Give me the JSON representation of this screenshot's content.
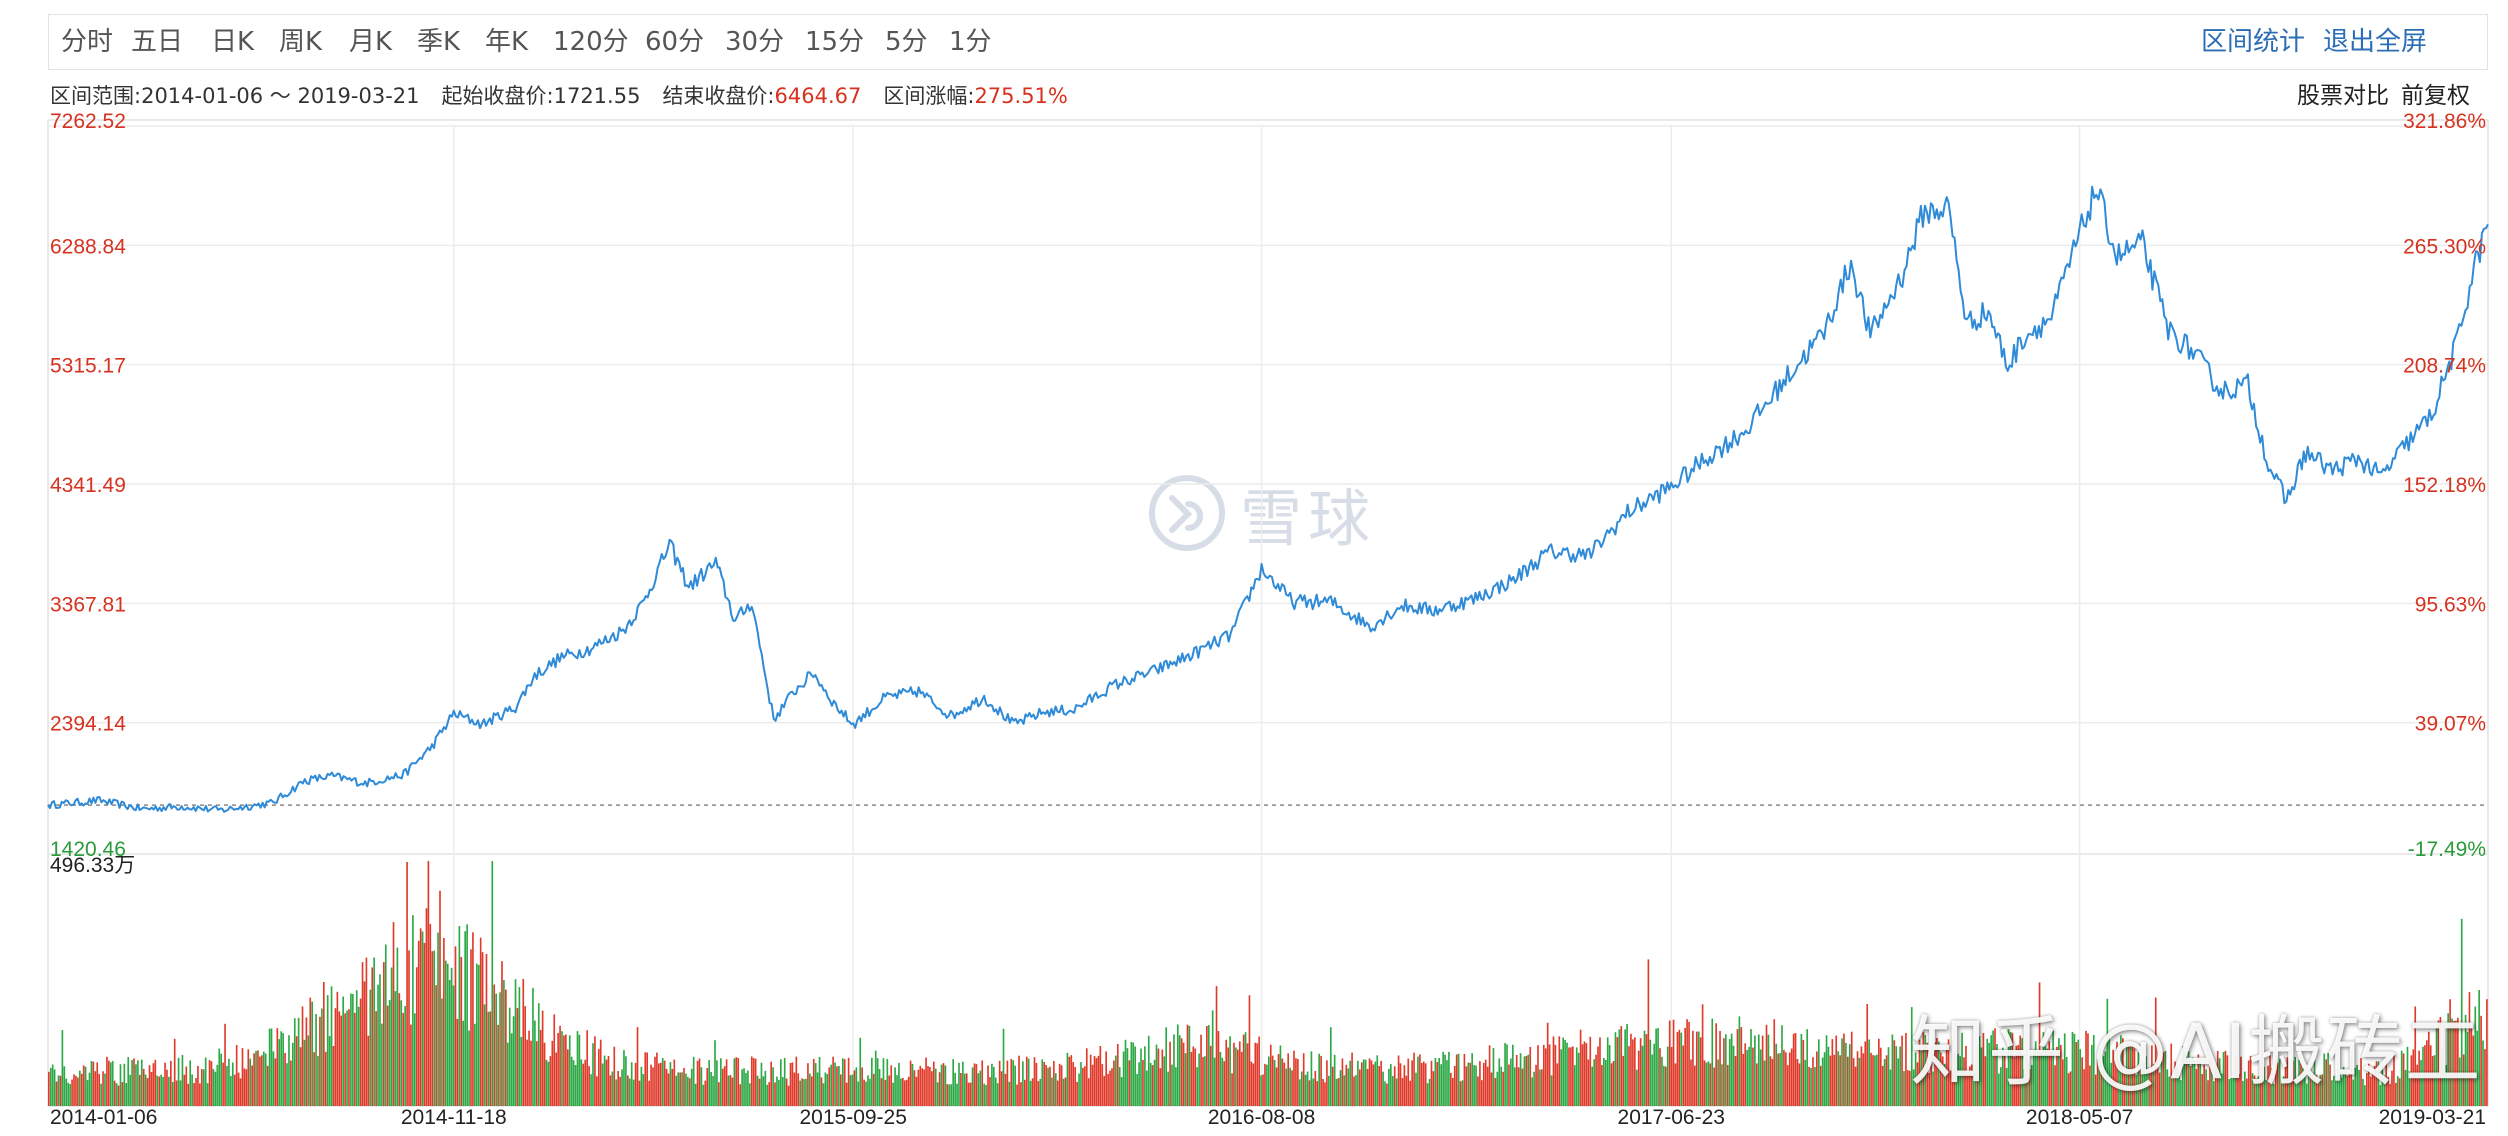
{
  "tabs": [
    "分时",
    "五日",
    "日K",
    "周K",
    "月K",
    "季K",
    "年K",
    "120分",
    "60分",
    "30分",
    "15分",
    "5分",
    "1分"
  ],
  "right_tabs": [
    "区间统计",
    "退出全屏"
  ],
  "summary": {
    "range_label": "区间范围:",
    "range_value": "2014-01-06 ～ 2019-03-21",
    "start_label": "起始收盘价:",
    "start_value": "1721.55",
    "end_label": "结束收盘价:",
    "end_value": "6464.67",
    "change_label": "区间涨幅:",
    "change_value": "275.51%"
  },
  "top_right": {
    "compare": "股票对比",
    "adjust": "前复权"
  },
  "watermarks": {
    "logo_text": "雪球",
    "zhihu": "知乎 @AI搬砖工"
  },
  "colors": {
    "line": "#2f8bd8",
    "up": "#e03a2a",
    "down": "#2ca845",
    "red_text": "#d6321f",
    "green_text": "#2a9a3a"
  },
  "chart_data": {
    "type": "line",
    "x_range": [
      "2014-01-06",
      "2019-03-21"
    ],
    "x_tick_labels": [
      "2014-01-06",
      "2014-11-18",
      "2015-09-25",
      "2016-08-08",
      "2017-06-23",
      "2018-05-07",
      "2019-03-21"
    ],
    "y_range": [
      1420.46,
      7262.52
    ],
    "y_tick_labels": [
      "7262.52",
      "6288.84",
      "5315.17",
      "4341.49",
      "3367.81",
      "2394.14",
      "1420.46"
    ],
    "pct_tick_labels": [
      "321.86%",
      "265.30%",
      "208.74%",
      "152.18%",
      "95.63%",
      "39.07%",
      "-17.49%"
    ],
    "baseline_value": 1721.55,
    "volume_max_label": "496.33万",
    "grid": true,
    "series": [
      {
        "x": [
          "2014-01-06",
          "2014-02-15",
          "2014-03-20",
          "2014-04-20",
          "2014-05-20",
          "2014-06-30",
          "2014-07-25",
          "2014-08-15",
          "2014-09-10",
          "2014-10-10",
          "2014-11-01",
          "2014-11-18",
          "2014-12-10",
          "2015-01-05",
          "2015-01-20",
          "2015-02-10",
          "2015-03-05",
          "2015-03-30",
          "2015-04-15",
          "2015-05-05",
          "2015-05-20",
          "2015-06-10",
          "2015-06-25",
          "2015-07-08",
          "2015-07-25",
          "2015-08-10",
          "2015-08-25",
          "2015-09-10",
          "2015-09-25",
          "2015-10-20",
          "2015-11-15",
          "2015-12-10",
          "2016-01-05",
          "2016-01-28",
          "2016-02-20",
          "2016-03-15",
          "2016-04-15",
          "2016-05-15",
          "2016-06-15",
          "2016-07-15",
          "2016-08-08",
          "2016-09-01",
          "2016-10-01",
          "2016-11-01",
          "2016-11-25",
          "2016-12-20",
          "2017-01-20",
          "2017-02-20",
          "2017-03-20",
          "2017-04-20",
          "2017-05-20",
          "2017-06-23",
          "2017-07-20",
          "2017-08-20",
          "2017-09-20",
          "2017-10-20",
          "2017-11-10",
          "2017-11-25",
          "2017-12-20",
          "2018-01-05",
          "2018-01-25",
          "2018-02-08",
          "2018-02-25",
          "2018-03-12",
          "2018-03-25",
          "2018-04-15",
          "2018-05-07",
          "2018-05-20",
          "2018-06-05",
          "2018-06-25",
          "2018-07-15",
          "2018-08-05",
          "2018-08-25",
          "2018-09-15",
          "2018-10-01",
          "2018-10-15",
          "2018-10-30",
          "2018-11-20",
          "2018-12-10",
          "2018-12-28",
          "2019-01-15",
          "2019-02-05",
          "2019-02-25",
          "2019-03-10",
          "2019-03-21"
        ],
        "values": [
          1721.55,
          1760,
          1690,
          1710,
          1680,
          1740,
          1920,
          1960,
          1900,
          1970,
          2200,
          2470,
          2380,
          2520,
          2780,
          2930,
          3000,
          3150,
          3380,
          3850,
          3500,
          3700,
          3220,
          3380,
          2420,
          2650,
          2800,
          2550,
          2380,
          2600,
          2650,
          2450,
          2600,
          2380,
          2480,
          2500,
          2700,
          2810,
          2950,
          3110,
          3650,
          3380,
          3380,
          3180,
          3350,
          3310,
          3400,
          3560,
          3790,
          3760,
          4110,
          4320,
          4550,
          4780,
          5200,
          5580,
          6150,
          5550,
          6050,
          6550,
          6600,
          5650,
          5750,
          5300,
          5550,
          5700,
          6380,
          6750,
          6200,
          6300,
          5600,
          5400,
          5100,
          5150,
          4500,
          4200,
          4600,
          4450,
          4550,
          4400,
          4650,
          4900,
          5500,
          6100,
          6460
        ]
      }
    ],
    "volume": {
      "unit": "万",
      "max": 496.33
    }
  }
}
